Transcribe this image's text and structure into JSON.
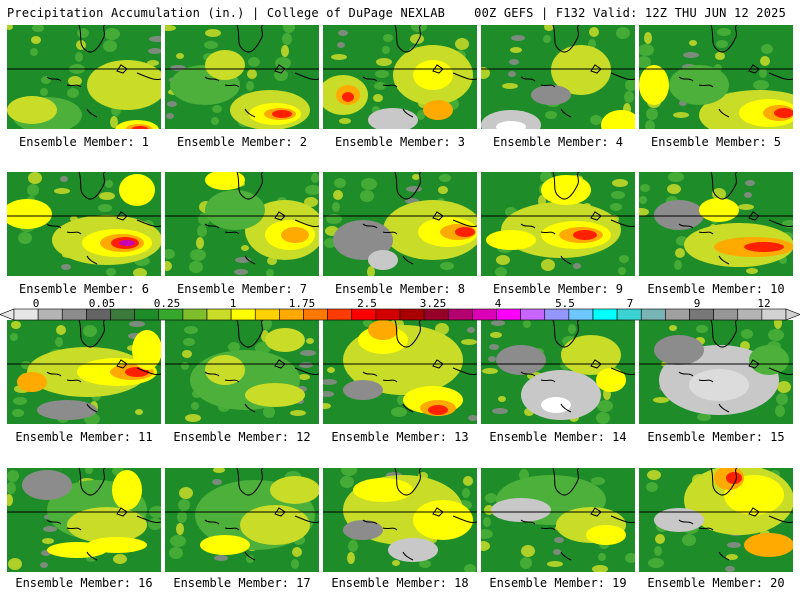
{
  "header": {
    "left": "Precipitation Accumulation (in.) | College of DuPage NEXLAB",
    "right": "00Z GEFS | F132 Valid: 12Z THU JUN 12 2025"
  },
  "colorbar": {
    "tick_labels": [
      "0",
      "0.05",
      "0.25",
      "1",
      "1.75",
      "2.5",
      "3.25",
      "4",
      "5.5",
      "7",
      "9",
      "12"
    ],
    "colors": [
      "#e6e6e6",
      "#b4b4b4",
      "#8c8c8c",
      "#646464",
      "#3c7a3c",
      "#1e8c28",
      "#37a82d",
      "#7dbe2a",
      "#c8dc28",
      "#ffff00",
      "#ffd200",
      "#ffaa00",
      "#ff7800",
      "#ff3c00",
      "#ff0000",
      "#d20000",
      "#aa0000",
      "#960028",
      "#b4006e",
      "#dc00b4",
      "#ff00ff",
      "#c864ff",
      "#9696ff",
      "#6ec8ff",
      "#00ffff",
      "#3cd2d2",
      "#78b4b4",
      "#a0a0a0",
      "#787878",
      "#969696",
      "#b4b4b4",
      "#d2d2d2"
    ]
  },
  "map_colors": {
    "background": "#1e8c28",
    "light_green": "#4cb03a",
    "yellow_green": "#c8dc28",
    "yellow": "#ffff00",
    "orange": "#ffaa00",
    "red": "#ff2000",
    "magenta": "#c800b4",
    "gray": "#8c8c8c",
    "light_gray": "#c8c8c8",
    "coastline": "#000000"
  },
  "members": [
    {
      "label": "Ensemble Member: 1"
    },
    {
      "label": "Ensemble Member: 2"
    },
    {
      "label": "Ensemble Member: 3"
    },
    {
      "label": "Ensemble Member: 4"
    },
    {
      "label": "Ensemble Member: 5"
    },
    {
      "label": "Ensemble Member: 6"
    },
    {
      "label": "Ensemble Member: 7"
    },
    {
      "label": "Ensemble Member: 8"
    },
    {
      "label": "Ensemble Member: 9"
    },
    {
      "label": "Ensemble Member: 10"
    },
    {
      "label": "Ensemble Member: 11"
    },
    {
      "label": "Ensemble Member: 12"
    },
    {
      "label": "Ensemble Member: 13"
    },
    {
      "label": "Ensemble Member: 14"
    },
    {
      "label": "Ensemble Member: 15"
    },
    {
      "label": "Ensemble Member: 16"
    },
    {
      "label": "Ensemble Member: 17"
    },
    {
      "label": "Ensemble Member: 18"
    },
    {
      "label": "Ensemble Member: 19"
    },
    {
      "label": "Ensemble Member: 20"
    }
  ]
}
